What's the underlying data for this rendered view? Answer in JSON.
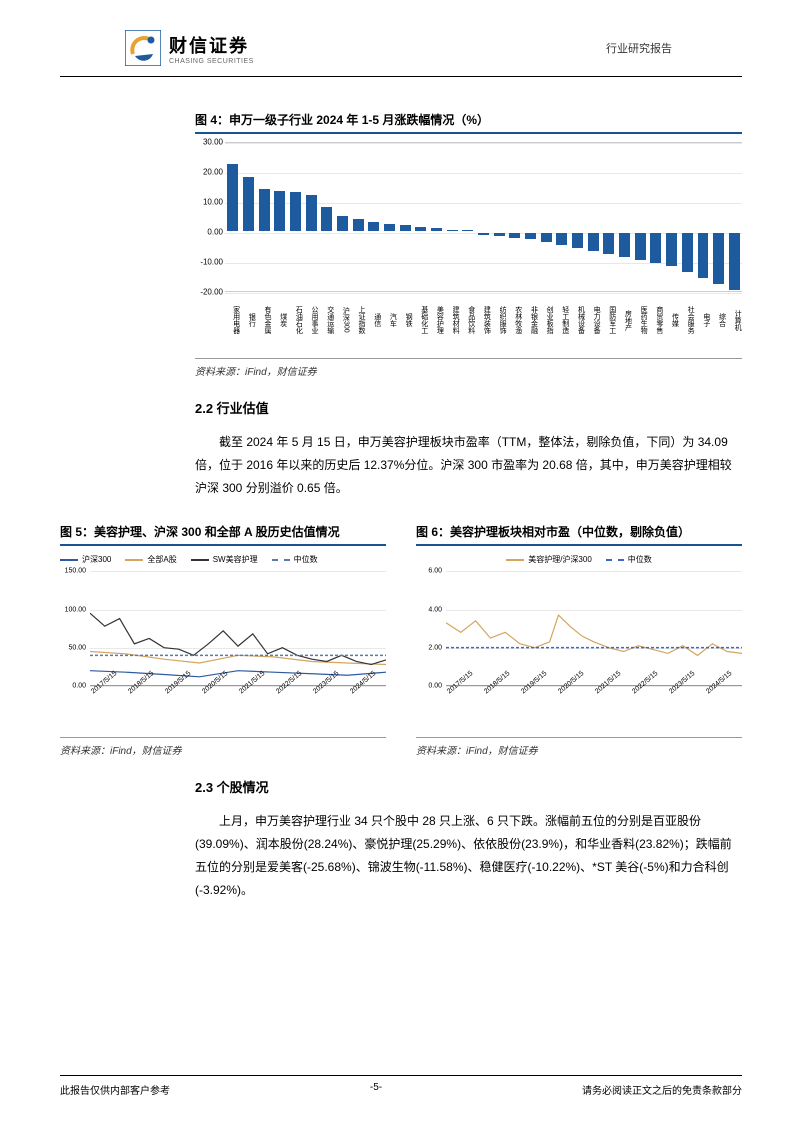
{
  "header": {
    "logo_cn": "财信证券",
    "logo_en": "CHASING SECURITIES",
    "right_text": "行业研究报告"
  },
  "fig4": {
    "title": "图 4：申万一级子行业 2024 年 1-5 月涨跌幅情况（%）",
    "type": "bar",
    "ylim": [
      -20,
      30
    ],
    "ytick_step": 10,
    "yticks": [
      30,
      20,
      10,
      0,
      -10,
      -20
    ],
    "bar_color": "#1e5a9e",
    "grid_color": "#e8e8e8",
    "background_color": "#ffffff",
    "categories": [
      "家用电器",
      "银行",
      "有色金属",
      "煤炭",
      "石油石化",
      "公用事业",
      "交通运输",
      "沪深300",
      "上证指数",
      "通信",
      "汽车",
      "钢铁",
      "基础化工",
      "美容护理",
      "建筑材料",
      "食品饮料",
      "建筑装饰",
      "纺织服饰",
      "农林牧渔",
      "非银金融",
      "创业板指",
      "轻工制造",
      "机械设备",
      "电力设备",
      "国防军工",
      "房地产",
      "医药生物",
      "商贸零售",
      "传媒",
      "社会服务",
      "电子",
      "综合",
      "计算机"
    ],
    "values": [
      22.5,
      18,
      14,
      13.5,
      13,
      12,
      8,
      5,
      4,
      3,
      2.5,
      2,
      1.5,
      1,
      0.5,
      0.2,
      -0.5,
      -1,
      -1.5,
      -2,
      -3,
      -4,
      -5,
      -6,
      -7,
      -8,
      -9,
      -10,
      -11,
      -13,
      -15,
      -17,
      -19
    ],
    "source": "资料来源：iFind，财信证券"
  },
  "sec22": {
    "heading": "2.2 行业估值",
    "text": "截至 2024 年 5 月 15 日，申万美容护理板块市盈率（TTM，整体法，剔除负值，下同）为 34.09 倍，位于 2016 年以来的历史后 12.37%分位。沪深 300 市盈率为 20.68 倍，其中，申万美容护理相较沪深 300 分别溢价 0.65 倍。"
  },
  "fig5": {
    "title": "图 5：美容护理、沪深 300 和全部 A 股历史估值情况",
    "type": "line",
    "ylim": [
      0,
      150
    ],
    "yticks": [
      150,
      100,
      50,
      0
    ],
    "x_labels": [
      "2017/5/15",
      "2018/5/15",
      "2019/5/15",
      "2020/5/15",
      "2021/5/15",
      "2022/5/15",
      "2023/5/15",
      "2024/5/15"
    ],
    "legend": [
      {
        "label": "沪深300",
        "color": "#2e5a9e",
        "dash": false
      },
      {
        "label": "全部A股",
        "color": "#d4a55e",
        "dash": false
      },
      {
        "label": "SW美容护理",
        "color": "#333333",
        "dash": false
      },
      {
        "label": "中位数",
        "color": "#5a7aa8",
        "dash": true
      }
    ],
    "series": {
      "hs300": [
        {
          "x": 0,
          "y": 20
        },
        {
          "x": 12,
          "y": 18
        },
        {
          "x": 25,
          "y": 15
        },
        {
          "x": 37,
          "y": 12
        },
        {
          "x": 50,
          "y": 20
        },
        {
          "x": 62,
          "y": 18
        },
        {
          "x": 75,
          "y": 16
        },
        {
          "x": 87,
          "y": 14
        },
        {
          "x": 100,
          "y": 18
        }
      ],
      "allA": [
        {
          "x": 0,
          "y": 45
        },
        {
          "x": 12,
          "y": 42
        },
        {
          "x": 25,
          "y": 35
        },
        {
          "x": 37,
          "y": 30
        },
        {
          "x": 50,
          "y": 40
        },
        {
          "x": 62,
          "y": 38
        },
        {
          "x": 75,
          "y": 32
        },
        {
          "x": 87,
          "y": 30
        },
        {
          "x": 100,
          "y": 28
        }
      ],
      "sw": [
        {
          "x": 0,
          "y": 95
        },
        {
          "x": 5,
          "y": 78
        },
        {
          "x": 10,
          "y": 88
        },
        {
          "x": 15,
          "y": 55
        },
        {
          "x": 20,
          "y": 62
        },
        {
          "x": 25,
          "y": 50
        },
        {
          "x": 30,
          "y": 48
        },
        {
          "x": 35,
          "y": 40
        },
        {
          "x": 40,
          "y": 55
        },
        {
          "x": 45,
          "y": 72
        },
        {
          "x": 50,
          "y": 52
        },
        {
          "x": 55,
          "y": 68
        },
        {
          "x": 60,
          "y": 42
        },
        {
          "x": 65,
          "y": 50
        },
        {
          "x": 70,
          "y": 40
        },
        {
          "x": 75,
          "y": 35
        },
        {
          "x": 80,
          "y": 32
        },
        {
          "x": 85,
          "y": 40
        },
        {
          "x": 90,
          "y": 32
        },
        {
          "x": 95,
          "y": 28
        },
        {
          "x": 100,
          "y": 34
        }
      ],
      "median_y": 40
    },
    "source": "资料来源：iFind，财信证券"
  },
  "fig6": {
    "title": "图 6：美容护理板块相对市盈（中位数，剔除负值）",
    "type": "line",
    "ylim": [
      0,
      6
    ],
    "yticks": [
      6,
      4,
      2,
      0
    ],
    "x_labels": [
      "2017/5/15",
      "2018/5/15",
      "2019/5/15",
      "2020/5/15",
      "2021/5/15",
      "2022/5/15",
      "2023/5/15",
      "2024/5/15"
    ],
    "legend": [
      {
        "label": "美容护理/沪深300",
        "color": "#d4a55e",
        "dash": false
      },
      {
        "label": "中位数",
        "color": "#3a68c4",
        "dash": true
      }
    ],
    "series": {
      "ratio": [
        {
          "x": 0,
          "y": 3.3
        },
        {
          "x": 5,
          "y": 2.8
        },
        {
          "x": 10,
          "y": 3.4
        },
        {
          "x": 15,
          "y": 2.5
        },
        {
          "x": 20,
          "y": 2.8
        },
        {
          "x": 25,
          "y": 2.2
        },
        {
          "x": 30,
          "y": 2.0
        },
        {
          "x": 35,
          "y": 2.3
        },
        {
          "x": 38,
          "y": 3.7
        },
        {
          "x": 42,
          "y": 3.1
        },
        {
          "x": 46,
          "y": 2.6
        },
        {
          "x": 50,
          "y": 2.3
        },
        {
          "x": 55,
          "y": 2.0
        },
        {
          "x": 60,
          "y": 1.8
        },
        {
          "x": 65,
          "y": 2.1
        },
        {
          "x": 70,
          "y": 1.9
        },
        {
          "x": 75,
          "y": 1.7
        },
        {
          "x": 80,
          "y": 2.1
        },
        {
          "x": 85,
          "y": 1.6
        },
        {
          "x": 90,
          "y": 2.2
        },
        {
          "x": 95,
          "y": 1.8
        },
        {
          "x": 100,
          "y": 1.7
        }
      ],
      "median_y": 2.0
    },
    "source": "资料来源：iFind，财信证券"
  },
  "sec23": {
    "heading": "2.3 个股情况",
    "text": "上月，申万美容护理行业 34 只个股中 28 只上涨、6 只下跌。涨幅前五位的分别是百亚股份(39.09%)、润本股份(28.24%)、豪悦护理(25.29%)、依依股份(23.9%)，和华业香料(23.82%)；跌幅前五位的分别是爱美客(-25.68%)、锦波生物(-11.58%)、稳健医疗(-10.22%)、*ST 美谷(-5%)和力合科创(-3.92%)。"
  },
  "footer": {
    "left": "此报告仅供内部客户参考",
    "center": "-5-",
    "right": "请务必阅读正文之后的免责条款部分"
  }
}
